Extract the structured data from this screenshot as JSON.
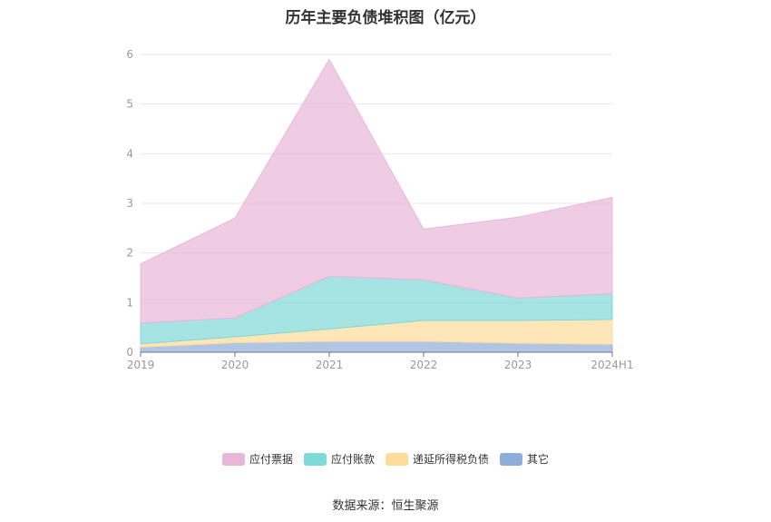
{
  "chart_data": {
    "type": "area",
    "stacked": true,
    "title": "历年主要负债堆积图（亿元）",
    "categories": [
      "2019",
      "2020",
      "2021",
      "2022",
      "2023",
      "2024H1"
    ],
    "ylim": [
      0,
      6
    ],
    "yticks": [
      "0",
      "1",
      "2",
      "3",
      "4",
      "5",
      "6"
    ],
    "grid": true,
    "legend_position": "bottom",
    "series": [
      {
        "name": "其它",
        "color": "#8fadd9",
        "values": [
          0.1,
          0.19,
          0.22,
          0.22,
          0.18,
          0.16
        ]
      },
      {
        "name": "递延所得税负债",
        "color": "#fedc9b",
        "values": [
          0.07,
          0.12,
          0.25,
          0.42,
          0.46,
          0.5
        ]
      },
      {
        "name": "应付账款",
        "color": "#7fd9d6",
        "values": [
          0.42,
          0.38,
          1.06,
          0.82,
          0.45,
          0.52
        ]
      },
      {
        "name": "应付票据",
        "color": "#e8b7d8",
        "values": [
          1.19,
          2.01,
          4.37,
          1.02,
          1.63,
          1.94
        ]
      }
    ]
  },
  "legend_order": [
    "应付票据",
    "应付账款",
    "递延所得税负债",
    "其它"
  ],
  "source": "数据来源：恒生聚源"
}
